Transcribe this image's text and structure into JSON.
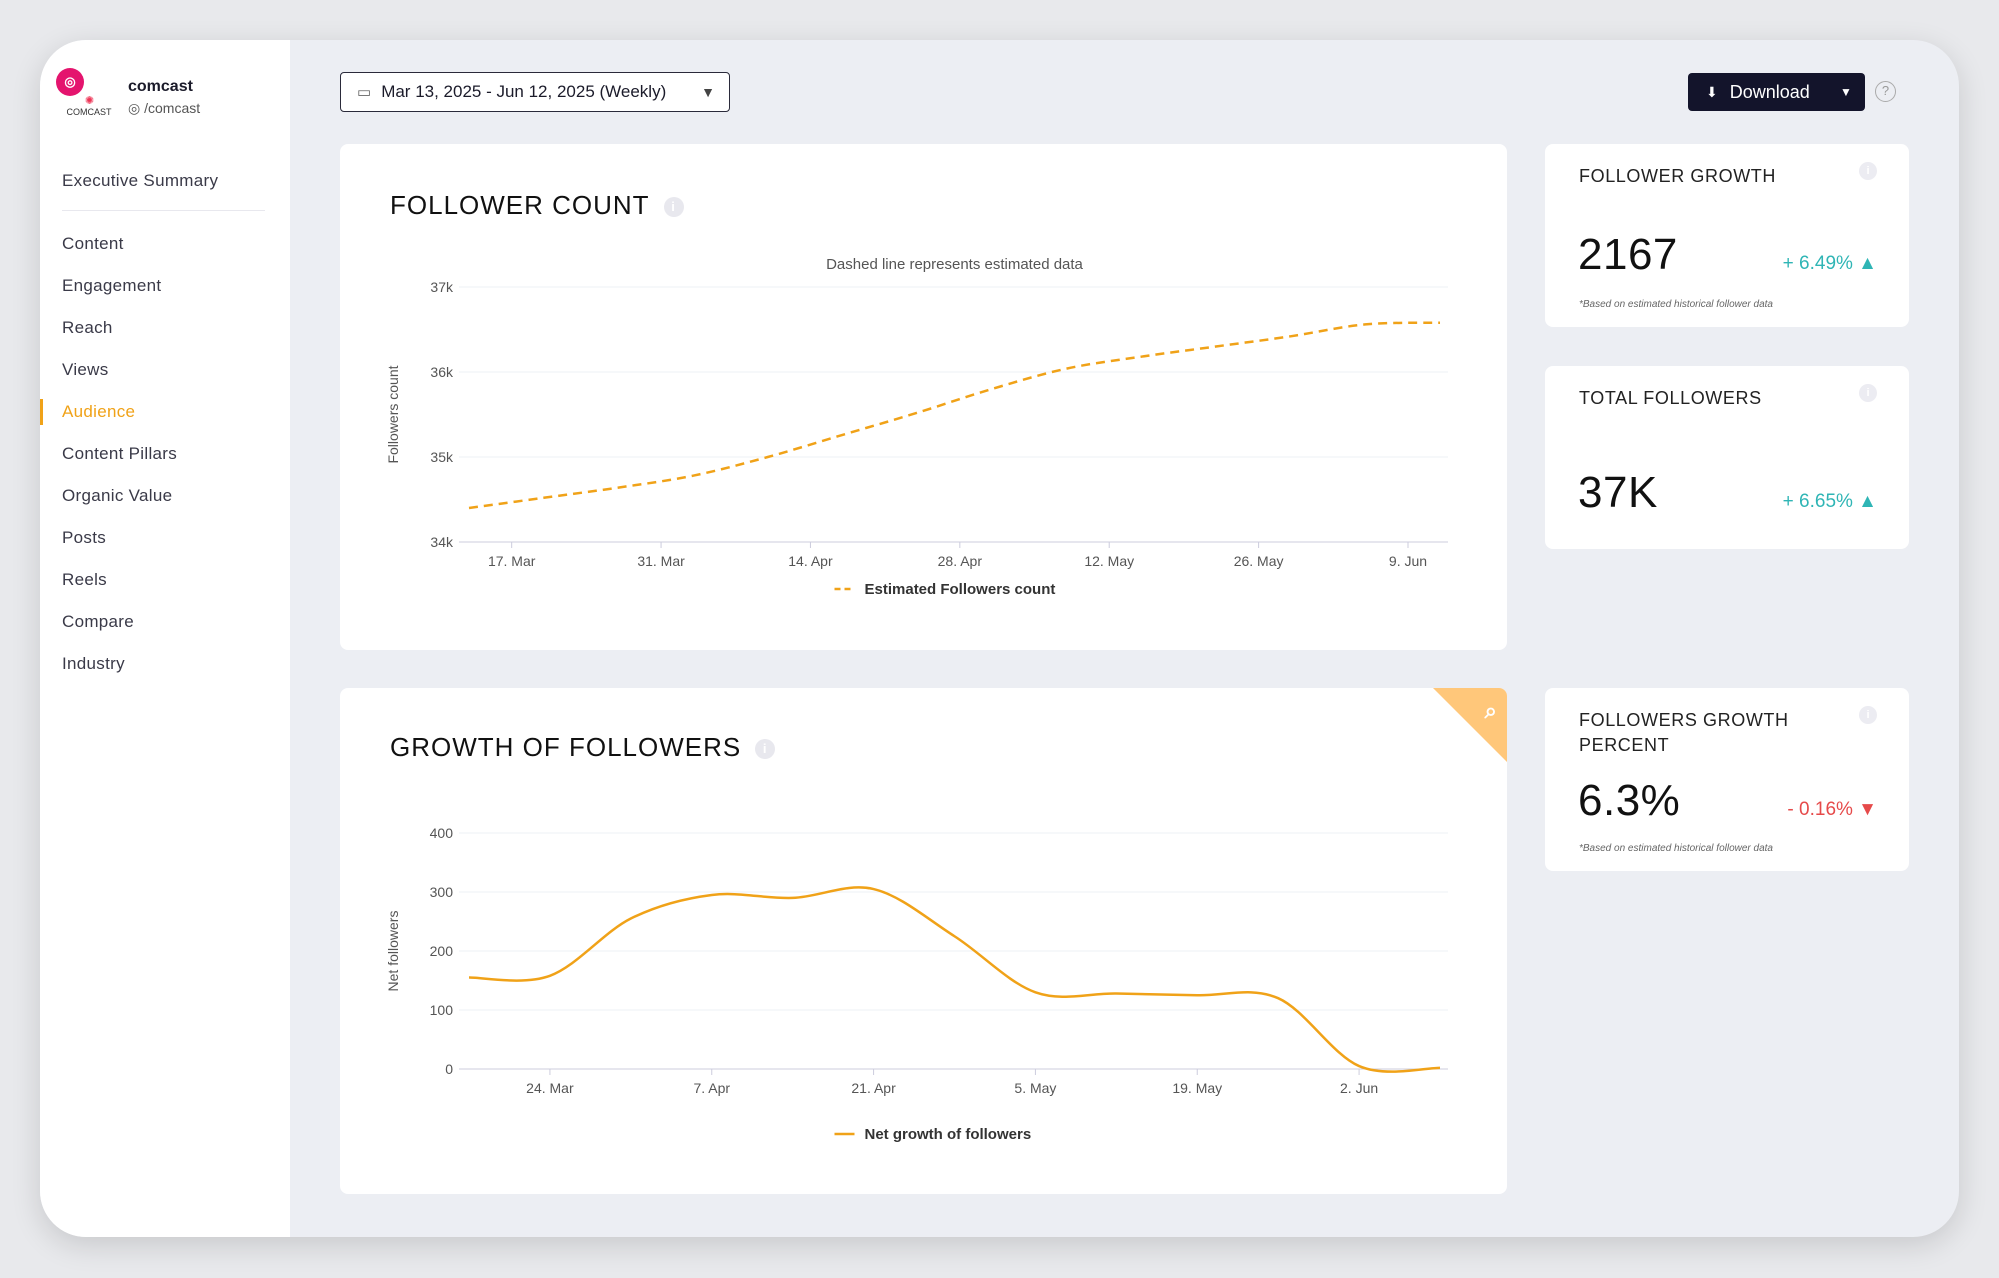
{
  "account": {
    "badge": "ig-icon",
    "logo_text": "COMCAST",
    "name": "comcast",
    "handle": "/comcast"
  },
  "nav": {
    "items": [
      {
        "label": "Executive Summary"
      },
      {
        "label": "Content"
      },
      {
        "label": "Engagement"
      },
      {
        "label": "Reach"
      },
      {
        "label": "Views"
      },
      {
        "label": "Audience",
        "active": true
      },
      {
        "label": "Content Pillars"
      },
      {
        "label": "Organic Value"
      },
      {
        "label": "Posts"
      },
      {
        "label": "Reels"
      },
      {
        "label": "Compare"
      },
      {
        "label": "Industry"
      }
    ]
  },
  "toolbar": {
    "date_range": "Mar 13, 2025 - Jun 12, 2025 (Weekly)",
    "download_label": "Download",
    "help": "?"
  },
  "follower_count": {
    "title": "FOLLOWER COUNT",
    "info": "i"
  },
  "growth_followers": {
    "title": "GROWTH OF FOLLOWERS",
    "info": "i"
  },
  "stats": {
    "follower_growth": {
      "title": "FOLLOWER GROWTH",
      "value": "2167",
      "delta": "+ 6.49% ▲",
      "note": "*Based on estimated historical follower data"
    },
    "total_followers": {
      "title": "TOTAL FOLLOWERS",
      "value": "37K",
      "delta": "+ 6.65% ▲"
    },
    "followers_growth_percent": {
      "title": "FOLLOWERS GROWTH PERCENT",
      "value": "6.3%",
      "delta": "- 0.16% ▼",
      "note": "*Based on estimated historical follower data"
    }
  },
  "colors": {
    "accent": "#f0a218",
    "up": "#2fb5b5",
    "down": "#e64a4a",
    "dark_button": "#13142b"
  },
  "chart_data": [
    {
      "type": "line",
      "subtitle": "Dashed line represents estimated data",
      "ylabel": "Followers count",
      "ylim": [
        34000,
        37000
      ],
      "y_ticks": [
        "34k",
        "35k",
        "36k",
        "37k"
      ],
      "y_tick_values": [
        34000,
        35000,
        36000,
        37000
      ],
      "x_ticks": [
        "17. Mar",
        "31. Mar",
        "14. Apr",
        "28. Apr",
        "12. May",
        "26. May",
        "9. Jun"
      ],
      "x_dates": [
        "2025-03-13",
        "2025-03-20",
        "2025-03-27",
        "2025-04-03",
        "2025-04-10",
        "2025-04-17",
        "2025-04-24",
        "2025-05-01",
        "2025-05-08",
        "2025-05-15",
        "2025-05-22",
        "2025-05-29",
        "2025-06-05",
        "2025-06-12"
      ],
      "x_tick_dates": [
        "2025-03-17",
        "2025-03-31",
        "2025-04-14",
        "2025-04-28",
        "2025-05-12",
        "2025-05-26",
        "2025-06-09"
      ],
      "series": [
        {
          "name": "Estimated Followers count",
          "values": [
            34400,
            34520,
            34640,
            34780,
            35000,
            35260,
            35520,
            35800,
            36040,
            36180,
            36300,
            36420,
            36560,
            36580
          ],
          "style": "dashed"
        }
      ]
    },
    {
      "type": "line",
      "ylabel": "Net followers",
      "ylim": [
        0,
        400
      ],
      "y_ticks": [
        "0",
        "100",
        "200",
        "300",
        "400"
      ],
      "y_tick_values": [
        0,
        100,
        200,
        300,
        400
      ],
      "x_ticks": [
        "24. Mar",
        "7. Apr",
        "21. Apr",
        "5. May",
        "19. May",
        "2. Jun"
      ],
      "x_dates": [
        "2025-03-17",
        "2025-03-24",
        "2025-03-31",
        "2025-04-07",
        "2025-04-14",
        "2025-04-21",
        "2025-04-28",
        "2025-05-05",
        "2025-05-12",
        "2025-05-19",
        "2025-05-26",
        "2025-06-02",
        "2025-06-09"
      ],
      "x_tick_dates": [
        "2025-03-24",
        "2025-04-07",
        "2025-04-21",
        "2025-05-05",
        "2025-05-19",
        "2025-06-02"
      ],
      "series": [
        {
          "name": "Net growth of followers",
          "values": [
            155,
            158,
            255,
            295,
            290,
            305,
            225,
            130,
            128,
            125,
            120,
            5,
            2
          ],
          "style": "solid"
        }
      ]
    }
  ]
}
